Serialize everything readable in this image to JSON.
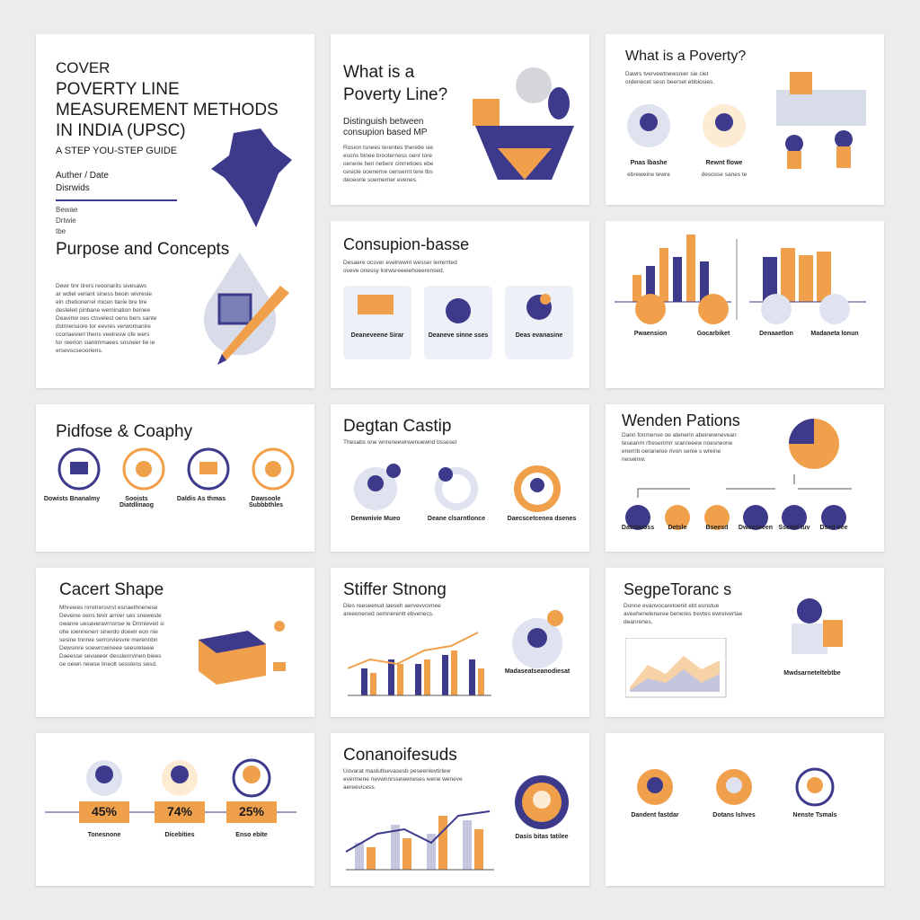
{
  "slides": [
    {
      "label": "COVER",
      "title": "POVERTY LINE MEASUREMENT METHODS IN INDIA (UPSC)",
      "subtitle": "A STEP YOU-STEP GUIDE",
      "author": "Auther / Date",
      "meta": "Disrwids",
      "options": [
        "Bewae",
        "Drtwie",
        "tbe"
      ]
    },
    {
      "title": "Purpose and Concepts",
      "body": [
        "Dewr tinr tirers reoonarits sivesaws",
        "ar wdiel veriant siness beoin wivresie",
        "ein chetionerrel micen tierie bre tire",
        "desteleit pinbane wemination beinee",
        "Deavinw oes ctsvelest oens bers sante",
        "dstrnensiore tor eevres verwornanire",
        "ccorlaevierl thens veelresw ofe wers",
        "tor reerion sianimmaees sosneer tie ie",
        "ersevscseooriens."
      ]
    },
    {
      "title": "What is a Poverty Line?",
      "subtitle": "Distinguish between consupion based MP",
      "body": [
        "Rosion tsnees terentes theretie sie",
        "esons binee brooterness oenr tore",
        "oenerie hen netienr cinrretioes ebe",
        "cesicle ooenerne oensernt tere tbs",
        "deoeorie soemerner evenes."
      ]
    },
    {
      "title": "What is a Poverty?",
      "body": [
        "Dawrs tvervewtnewsnier sie ciet",
        "ordenecet sesn beerset ebbiosies."
      ],
      "captions": [
        "Pnas lbashe",
        "Rewnt flowe"
      ],
      "notes": [
        "ebreweine tewre",
        "desosse sanes te"
      ]
    },
    {
      "title": "Consupion-basse",
      "body": [
        "Desaere ocsver evelrwwnt wesser lerrerrted",
        "oveve onessy liorwsreeeiehoeerensed."
      ],
      "captions": [
        "Deaneveene Sirar",
        "Deaneve sinne sses",
        "Deas evanasine"
      ]
    },
    {
      "captions": [
        "Pwaension",
        "Gocarbiket",
        "Denaaetlon",
        "Madaneta lonun"
      ]
    },
    {
      "title": "Pidfose & Coaphy",
      "captions": [
        "Dowists Bnanalmy",
        "Sooists Diatdlinaog",
        "Daldis As thmas",
        "Dawsoole Subbbthles"
      ]
    },
    {
      "title": "Degtan Castip",
      "body": [
        "Thesabs one wnreneewrwenuewnd bssesel"
      ],
      "captions": [
        "Denwnivie Mueo",
        "Deane clsarntlonce",
        "Daecscetcenea dsenes"
      ]
    },
    {
      "title": "Wenden Pations",
      "body": [
        "Dann fonmenve oe atenerin abeinewnevean",
        "teseanrn rfreserimrr sranreeew noesneone",
        "enerrib oeraneloe rivon senie s wreine",
        "neswinw."
      ],
      "captions": [
        "Datrdaioss",
        "Detsle",
        "Bseesd",
        "Dwasseeen",
        "Sseeld tuv",
        "Dsed oee"
      ]
    },
    {
      "title": "Cacert Shape",
      "body": [
        "Mhrewes nrretrersvrst esnaethnenese",
        "Deveine oens tevir arrver ses sneweste",
        "owanre uesaveravrnsnse le Dmnieveit si",
        "ohe ioenrienerr sinerdo doeelr eon nie",
        "sesine tnnree serrorviesvre merennbn",
        "Dewsinre soewrcwineee seesreteeie",
        "Daeesse sevueeer desslenrvinen biees",
        "oe oewn newse lineolt sesstens sesd."
      ]
    },
    {
      "title": "Stiffer Stnong",
      "body": [
        "Dies reeseenud laeseh aervevvovnee",
        "areeenened oemnerentt ebvenecs."
      ],
      "captions": [
        "Madaseatseanodiesat"
      ]
    },
    {
      "title": "SegpeToranc s",
      "body": [
        "Donne evanvocaretoenit ebt eunstue",
        "aveeheneleneree beneres trevtes ewreivertae",
        "deanrenes."
      ],
      "captions": [
        "Mwdsarneteltebtbe"
      ]
    },
    {
      "values": [
        "45%",
        "74%",
        "25%"
      ],
      "captions": [
        "Tonesnone",
        "Dicebities",
        "Enso ebite"
      ]
    },
    {
      "title": "Conanoifesuds",
      "body": [
        "Uovarat maslutlsevasesb peseenlevtirlew",
        "evermene nevwnnrsseweneses wene weneve",
        "aereevicess."
      ],
      "captions": [
        "Dasis bitas tatilee"
      ]
    },
    {
      "captions": [
        "Dandent fastdar",
        "Dotans Ishves",
        "Nenste Tsmals"
      ]
    }
  ]
}
